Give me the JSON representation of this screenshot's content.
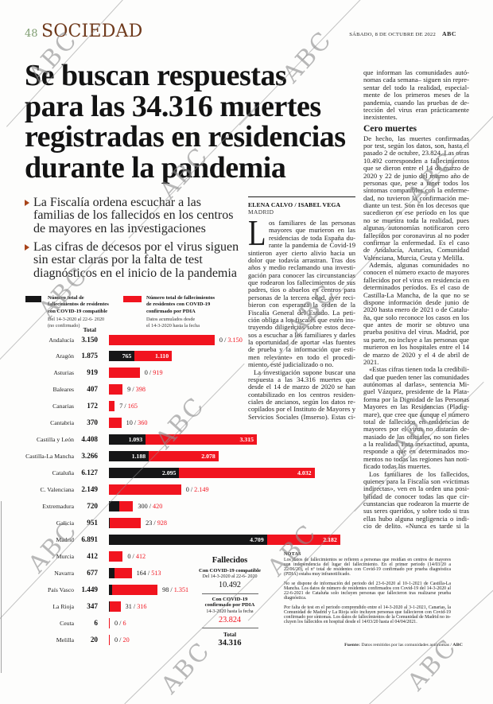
{
  "page": {
    "number": "48",
    "section": "SOCIEDAD",
    "dateline": "SÁBADO, 8 DE OCTUBRE DE 2022",
    "brand": "ABC",
    "watermark_text": "ABC"
  },
  "article": {
    "headline_lines": [
      "Se buscan respuestas",
      "para las 34.316 muertes",
      "registradas en residencias",
      "durante la pandemia"
    ],
    "bullets": [
      "La Fiscalía ordena escuchar a las familias de los fallecidos en los centros de mayores en las investigaciones",
      "Las cifras de decesos por el virus siguen sin estar claras por la falta de test diagnósticos en el inicio de la pandemia"
    ],
    "byline": "ELENA CALVO / ISABEL VEGA",
    "byline_city": "MADRID",
    "drop_cap": "L",
    "col2_paragraph_1": "os familiares de las personas mayores que murieron en las residencias de toda España durante la pandemia de Covid-19 sintieron ayer cierto alivio hacia un dolor que todavía arrastran. Tras dos años y medio reclamando una investigación para conocer las circunstancias que rodearon los fallecimientos de sus padres, tíos o abuelos en centros para personas de la tercera edad, ayer recibieron con esperanza la orden de la Fiscalía General del Estado. La petición obliga a los fiscales que estén instruyendo diligencias sobre estos decesos a escuchar a los familiares y darles la oportunidad de aportar «las fuentes de prueba y la información que estimen relevante» en todo el procedimiento, esté judicializado o no.",
    "col2_paragraph_2": "La investigación supone buscar una respuesta a las 34.316 muertes que desde el 14 de marzo de 2020 se han contabilizado en los centros residenciales de ancianos, según los datos recopilados por el Instituto de Mayores y Servicios Sociales (Imserso). Estas cifras –de las",
    "col3_paragraph_1": "que informan las comunidades autónomas cada semana– siguen sin representar del todo la realidad, especialmente de los primeros meses de la pandemia, cuando las pruebas de detección del virus eran prácticamente inexistentes.",
    "subhead": "Cero muertes",
    "col3_paragraph_2": "De hecho, las muertes confirmadas por test, según los datos, son,  hasta el pasado 2 de octubre, 23.824. Las otras 10.492 corresponden a fallecimientos que se dieron entre el 14 de marzo de 2020 y 22 de junio del mismo año de personas que, pese a tener todos los síntomas compatibles con la enfermedad, no tuvieron la confirmación mediante un test. Son en los decesos que sucedieron en ese período en los que no se muestra toda la realidad, pues algunas autonomías notificaron cero fallecidos por coronavirus al no poder confirmar la enfermedad. Es el caso de Andalucía, Asturias, Comunidad Valenciana, Murcia, Ceuta y Melilla.",
    "col3_paragraph_3": "Además, algunas comunidades no conocen el número exacto de mayores fallecidos por el virus en residencia en determinados períodos. Es el caso de Castilla-La Mancha, de la que no se dispone información desde junio de 2020 hasta enero de 2021 o de Cataluña, que solo reconoce los casos en los que antes de morir se obtuvo una prueba positiva del virus. Madrid, por su parte, no incluye a las personas que murieron en los hospitales entre el 14 de marzo de 2020 y el 4 de abril de 2021.",
    "col3_paragraph_4": "«Estas cifras tienen toda la credibilidad que pueden tener las comunidades autónomas al darlas», sentencia Miguel Vázquez, presidente de la Plataforma por la Dignidad de las Personas Mayores en las Residencias (Pladigmare), que cree que aunque el número total de fallecidos en residencias de mayores por el virus no distarán demasiado de las oficiales, no son fieles a la realidad. Esta inexactitud, apunta, responde a que en determinados momentos no todas las regiones han notificado todas las muertes.",
    "col3_paragraph_5": "Los familiares de los fallecidos,  quienes para la Fiscalía son «víctimas indirectas», ven en la orden una posibilidad de conocer todas las que circunstancias que rodearon la muerte de sus seres queridos, y sobre todo si tras ellas hubo alguna negligencia o indicio de delito. «Nunca es tarde si la dicha es buena», celebra Carmen López, presidenta de la Asociación por los Derechos de los Mayores y sus familiares (Ademaf). «Esperanzas, todas», remarca por su parte Vázquez. Hasta ahora,"
  },
  "chart_data": {
    "type": "bar",
    "orientation": "horizontal",
    "colors": {
      "compatible": "#161617",
      "confirmed": "#f1141f"
    },
    "legend": [
      {
        "swatch": "black",
        "label": "Número total de\nfallecimientos de residentes\ncon COVID-19 compatible",
        "sublabel": "Del 14-3-2020 al 22-6- 2020\n(no confirmado)"
      },
      {
        "swatch": "red",
        "label": "Número total de fallecimientos\nde residentes con COVID-19\nconfirmado por PDIA",
        "sublabel": "Datos acumulados desde\nel 14-3-2020 hasta la fecha"
      }
    ],
    "total_header": "Total",
    "rows": [
      {
        "region": "Andalucía",
        "total": "3.150",
        "compatible": 0,
        "confirmed": 3150,
        "compatible_label": "0",
        "confirmed_label": "3.150",
        "labels_inside": false
      },
      {
        "region": "Aragón",
        "total": "1.875",
        "compatible": 765,
        "confirmed": 1110,
        "compatible_label": "765",
        "confirmed_label": "1.110",
        "labels_inside": true
      },
      {
        "region": "Asturias",
        "total": "919",
        "compatible": 0,
        "confirmed": 919,
        "compatible_label": "0",
        "confirmed_label": "919",
        "labels_inside": false
      },
      {
        "region": "Baleares",
        "total": "407",
        "compatible": 9,
        "confirmed": 398,
        "compatible_label": "9",
        "confirmed_label": "398",
        "labels_inside": false
      },
      {
        "region": "Canarias",
        "total": "172",
        "compatible": 7,
        "confirmed": 165,
        "compatible_label": "7",
        "confirmed_label": "165",
        "labels_inside": false
      },
      {
        "region": "Cantabria",
        "total": "370",
        "compatible": 10,
        "confirmed": 360,
        "compatible_label": "10",
        "confirmed_label": "360",
        "labels_inside": false
      },
      {
        "region": "Castilla y León",
        "total": "4.408",
        "compatible": 1093,
        "confirmed": 3315,
        "compatible_label": "1.093",
        "confirmed_label": "3.315",
        "labels_inside": true
      },
      {
        "region": "Castilla-La Mancha",
        "total": "3.266",
        "compatible": 1188,
        "confirmed": 2078,
        "compatible_label": "1.188",
        "confirmed_label": "2.078",
        "labels_inside": true
      },
      {
        "region": "Cataluña",
        "total": "6.127",
        "compatible": 2095,
        "confirmed": 4032,
        "compatible_label": "2.095",
        "confirmed_label": "4.032",
        "labels_inside": true
      },
      {
        "region": "C. Valenciana",
        "total": "2.149",
        "compatible": 0,
        "confirmed": 2149,
        "compatible_label": "0",
        "confirmed_label": "2.149",
        "labels_inside": false
      },
      {
        "region": "Extremadura",
        "total": "720",
        "compatible": 300,
        "confirmed": 420,
        "compatible_label": "300",
        "confirmed_label": "420",
        "labels_inside": false
      },
      {
        "region": "Galicia",
        "total": "951",
        "compatible": 23,
        "confirmed": 928,
        "compatible_label": "23",
        "confirmed_label": "928",
        "labels_inside": false
      },
      {
        "region": "Madrid",
        "total": "6.891",
        "compatible": 4709,
        "confirmed": 2182,
        "compatible_label": "4.709",
        "confirmed_label": "2.182",
        "labels_inside": true
      },
      {
        "region": "Murcia",
        "total": "412",
        "compatible": 0,
        "confirmed": 412,
        "compatible_label": "0",
        "confirmed_label": "412",
        "labels_inside": false
      },
      {
        "region": "Navarra",
        "total": "677",
        "compatible": 164,
        "confirmed": 513,
        "compatible_label": "164",
        "confirmed_label": "513",
        "labels_inside": false
      },
      {
        "region": "País Vasco",
        "total": "1.449",
        "compatible": 98,
        "confirmed": 1351,
        "compatible_label": "98",
        "confirmed_label": "1.351",
        "labels_inside": false
      },
      {
        "region": "La Rioja",
        "total": "347",
        "compatible": 31,
        "confirmed": 316,
        "compatible_label": "31",
        "confirmed_label": "316",
        "labels_inside": false
      },
      {
        "region": "Ceuta",
        "total": "6",
        "compatible": 0,
        "confirmed": 6,
        "compatible_label": "0",
        "confirmed_label": "6",
        "labels_inside": false
      },
      {
        "region": "Melilla",
        "total": "20",
        "compatible": 0,
        "confirmed": 20,
        "compatible_label": "0",
        "confirmed_label": "20",
        "labels_inside": false
      }
    ],
    "summary": {
      "title": "Fallecidos",
      "item1_label": "Con COVID-19 compatible",
      "item1_sublabel": "Del 14-3-2020 al 22-6- 2020",
      "item1_value": "10.492",
      "item2_label": "Con COVID-19\nconfirmado por PDIA",
      "item2_sublabel": "14-3-2020 hasta la fecha",
      "item2_value": "23.824",
      "total_label": "Total",
      "total_value": "34.316"
    }
  },
  "notes": {
    "title": "NOTAS",
    "paragraphs": [
      "Los datos de fallecimientos se refieren a personas que residían en centros de mayores con independencia del lugar del fallecimiento. En el primer periodo (14/03/20 a 22/06/20), el nº total de residentes con Covid-19 confirmado por prueba diagnóstica (PDIA) estaba muy infranotificado.",
      "No se dispone de información del periodo del 23-6-2020 al 10-1-2021 de Castilla-La Mancha. Los datos de número de residentes confirmados con Covid-19 del 14-3-2020 al 22-6-2021 de Cataluña solo incluyen personas que fallecieron tras realizarse prueba diagnóstica.",
      "Por falta de test en el periodo comprendido entre el 14-3-2020 al 3-1-2021, Canarias, la Comunidad de Madrid y La Rioja sólo incluyen personas que fallecieron con Covid-19 confirmado por síntomas. Los datos de fallecimientos de la Comunidad de Madrid no incluyen los fallecidos en hospital desde el 14/03/20 hasta el 04/04/2021."
    ],
    "source_label": "Fuente:",
    "source_text": " Datos remitidos por las comunidades autónomas  /  ",
    "source_brand": "ABC"
  }
}
